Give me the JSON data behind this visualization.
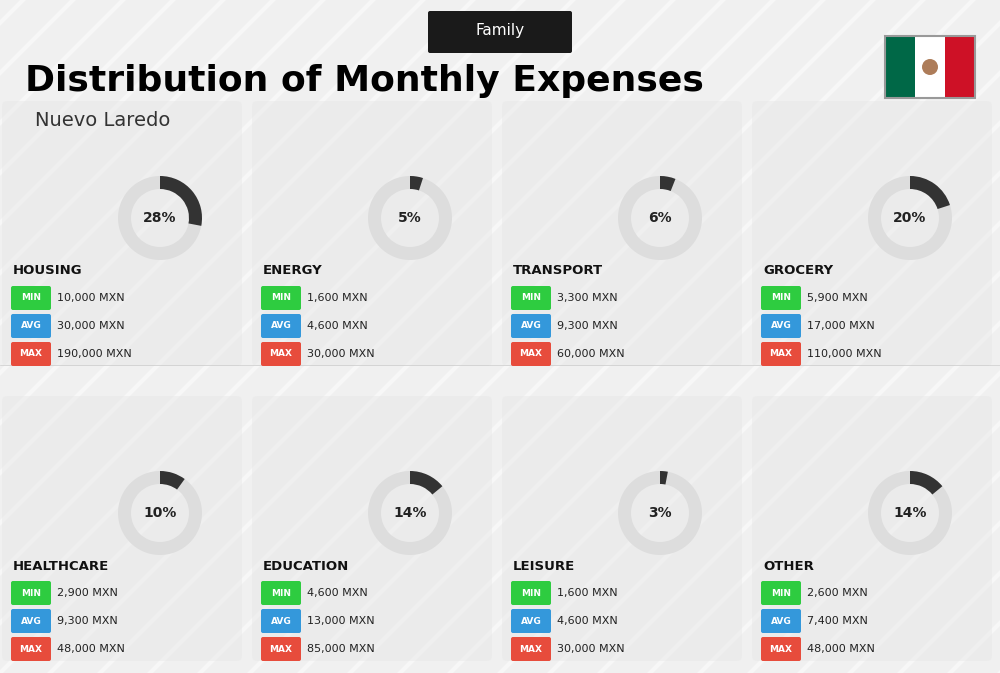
{
  "title": "Distribution of Monthly Expenses",
  "subtitle": "Family",
  "location": "Nuevo Laredo",
  "bg_color": "#f0f0f0",
  "categories": [
    {
      "name": "HOUSING",
      "pct": 28,
      "min": "10,000 MXN",
      "avg": "30,000 MXN",
      "max": "190,000 MXN",
      "row": 0,
      "col": 0
    },
    {
      "name": "ENERGY",
      "pct": 5,
      "min": "1,600 MXN",
      "avg": "4,600 MXN",
      "max": "30,000 MXN",
      "row": 0,
      "col": 1
    },
    {
      "name": "TRANSPORT",
      "pct": 6,
      "min": "3,300 MXN",
      "avg": "9,300 MXN",
      "max": "60,000 MXN",
      "row": 0,
      "col": 2
    },
    {
      "name": "GROCERY",
      "pct": 20,
      "min": "5,900 MXN",
      "avg": "17,000 MXN",
      "max": "110,000 MXN",
      "row": 0,
      "col": 3
    },
    {
      "name": "HEALTHCARE",
      "pct": 10,
      "min": "2,900 MXN",
      "avg": "9,300 MXN",
      "max": "48,000 MXN",
      "row": 1,
      "col": 0
    },
    {
      "name": "EDUCATION",
      "pct": 14,
      "min": "4,600 MXN",
      "avg": "13,000 MXN",
      "max": "85,000 MXN",
      "row": 1,
      "col": 1
    },
    {
      "name": "LEISURE",
      "pct": 3,
      "min": "1,600 MXN",
      "avg": "4,600 MXN",
      "max": "30,000 MXN",
      "row": 1,
      "col": 2
    },
    {
      "name": "OTHER",
      "pct": 14,
      "min": "2,600 MXN",
      "avg": "7,400 MXN",
      "max": "48,000 MXN",
      "row": 1,
      "col": 3
    }
  ],
  "min_color": "#2ecc40",
  "avg_color": "#3498db",
  "max_color": "#e74c3c",
  "label_color": "#ffffff",
  "category_name_color": "#111111",
  "pct_color": "#222222",
  "arc_color": "#333333",
  "arc_bg_color": "#cccccc"
}
